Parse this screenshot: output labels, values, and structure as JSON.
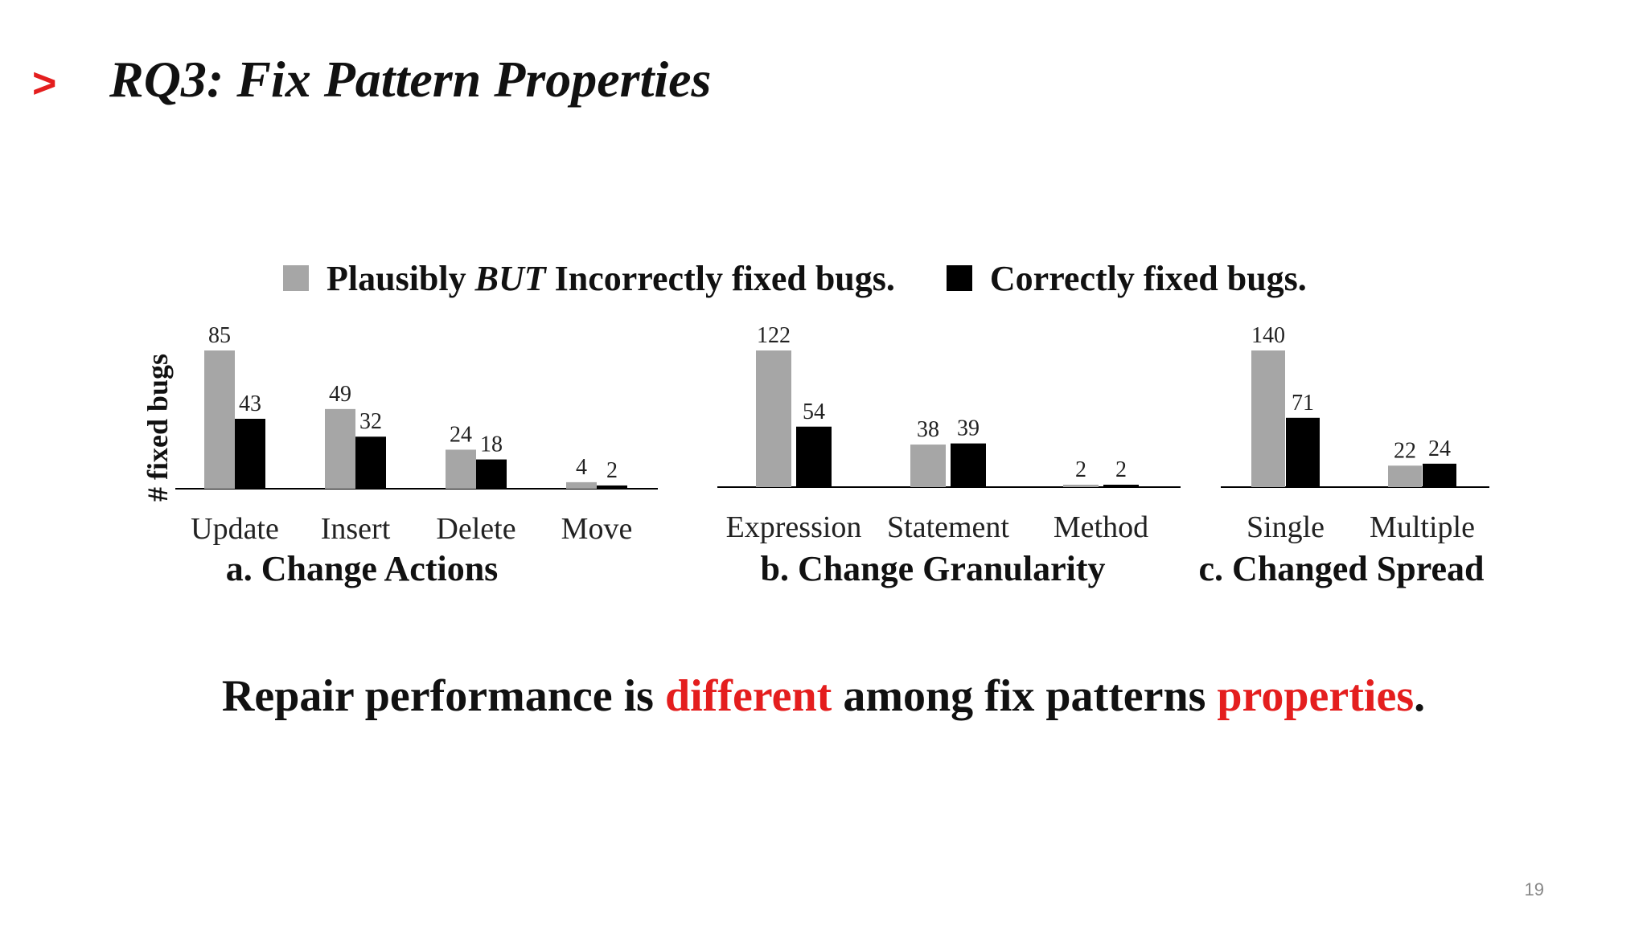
{
  "slide": {
    "title_marker": ">",
    "title": "RQ3: Fix Pattern Properties",
    "page_number": "19"
  },
  "legend": {
    "items": [
      {
        "label_pre": "Plausibly ",
        "label_em": "BUT",
        "label_post": " Incorrectly fixed bugs.",
        "color": "#a6a6a6"
      },
      {
        "label_pre": "Correctly fixed bugs.",
        "label_em": "",
        "label_post": "",
        "color": "#000000"
      }
    ]
  },
  "conclusion": {
    "part1": "Repair performance is ",
    "highlight1": "different",
    "part2": " among fix patterns ",
    "highlight2": "properties",
    "part3": ".",
    "highlight_color": "#e41e1e"
  },
  "chart_data": [
    {
      "type": "bar",
      "title": "a. Change Actions",
      "ylabel": "# fixed bugs",
      "categories": [
        "Update",
        "Insert",
        "Delete",
        "Move"
      ],
      "series": [
        {
          "name": "Plausibly BUT Incorrectly fixed bugs.",
          "color": "#a6a6a6",
          "values": [
            85,
            49,
            24,
            4
          ]
        },
        {
          "name": "Correctly fixed bugs.",
          "color": "#000000",
          "values": [
            43,
            32,
            18,
            2
          ]
        }
      ],
      "ylim": [
        0,
        85
      ],
      "grid": false
    },
    {
      "type": "bar",
      "title": "b. Change Granularity",
      "ylabel": "",
      "categories": [
        "Expression",
        "Statement",
        "Method"
      ],
      "series": [
        {
          "name": "Plausibly BUT Incorrectly fixed bugs.",
          "color": "#a6a6a6",
          "values": [
            122,
            38,
            2
          ]
        },
        {
          "name": "Correctly fixed bugs.",
          "color": "#000000",
          "values": [
            54,
            39,
            2
          ]
        }
      ],
      "ylim": [
        0,
        122
      ],
      "grid": false
    },
    {
      "type": "bar",
      "title": "c. Changed Spread",
      "ylabel": "",
      "categories": [
        "Single",
        "Multiple"
      ],
      "series": [
        {
          "name": "Plausibly BUT Incorrectly fixed bugs.",
          "color": "#a6a6a6",
          "values": [
            140,
            22
          ]
        },
        {
          "name": "Correctly fixed bugs.",
          "color": "#000000",
          "values": [
            71,
            24
          ]
        }
      ],
      "ylim": [
        0,
        140
      ],
      "grid": false
    }
  ]
}
